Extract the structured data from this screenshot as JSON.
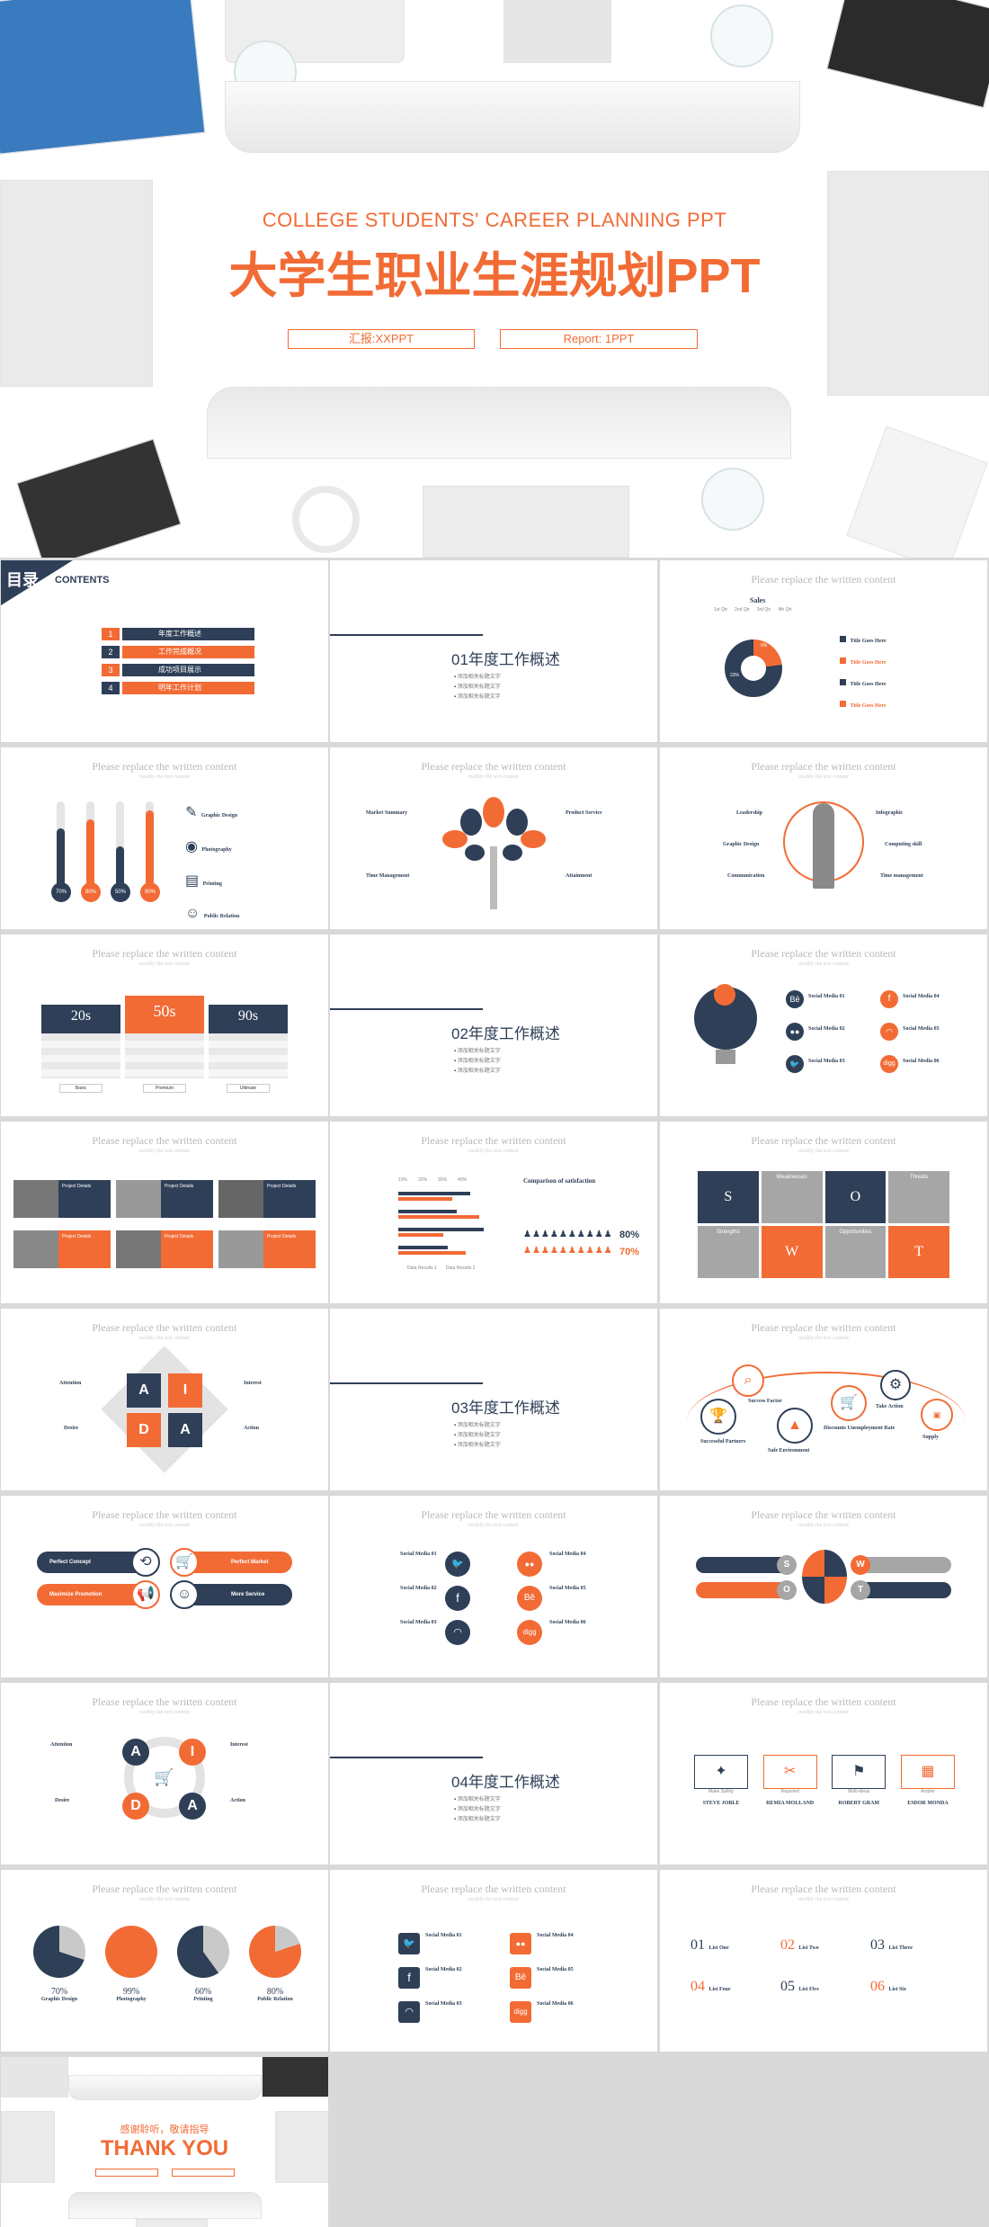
{
  "cover": {
    "title_en": "COLLEGE STUDENTS' CAREER PLANNING PPT",
    "title_cn": "大学生职业生涯规划PPT",
    "reporter": "汇报:XXPPT",
    "report": "Report: 1PPT"
  },
  "contents": {
    "label_cn": "目录",
    "label_en": "CONTENTS",
    "items": [
      {
        "num": "1",
        "text": "年度工作概述"
      },
      {
        "num": "2",
        "text": "工作完成概况"
      },
      {
        "num": "3",
        "text": "成功项目展示"
      },
      {
        "num": "4",
        "text": "明年工作计划"
      }
    ]
  },
  "common": {
    "slide_title": "Please replace the written content",
    "slide_sub": "modify the text content",
    "bullet": "添加相关标题文字"
  },
  "sections": [
    {
      "title": "01年度工作概述"
    },
    {
      "title": "02年度工作概述"
    },
    {
      "title": "03年度工作概述"
    },
    {
      "title": "04年度工作概述"
    }
  ],
  "sales": {
    "title": "Sales",
    "legend": [
      "1st Qtr",
      "2nd Qtr",
      "3rd Qtr",
      "4th Qtr"
    ],
    "labels": [
      "9%",
      "23%"
    ],
    "items": [
      "Title Goes Here",
      "Title Goes Here",
      "Title Goes Here",
      "Title Goes Here"
    ]
  },
  "thermo": {
    "values": [
      "70%",
      "80%",
      "50%",
      "90%"
    ],
    "items": [
      "Graphic Design",
      "Photography",
      "Printing",
      "Public Relation"
    ]
  },
  "tree": {
    "items": [
      "Market Summary",
      "Product Service",
      "Time Management",
      "Attainment"
    ]
  },
  "person": {
    "items": [
      "Leadership",
      "Infographic",
      "Graphic Design",
      "Computing skill",
      "Communication",
      "Time management"
    ]
  },
  "pricing": {
    "plans": [
      "20s",
      "50s",
      "90s"
    ],
    "per": "per month",
    "buttons": [
      "Basic",
      "Premium",
      "Ultimate"
    ]
  },
  "social": {
    "items": [
      "Social Media 01",
      "Social Media 02",
      "Social Media 03",
      "Social Media 04",
      "Social Media 05",
      "Social Media 06"
    ]
  },
  "team": {
    "label": "Project Details"
  },
  "satisfaction": {
    "title": "Comparison of satisfaction",
    "values": [
      "80%",
      "70%"
    ],
    "axis": [
      "10%",
      "20%",
      "30%",
      "40%"
    ],
    "legend": [
      "Data Results 1",
      "Data Results 2"
    ]
  },
  "swot": {
    "letters": [
      "S",
      "W",
      "O",
      "T"
    ],
    "labels": [
      "Strengths",
      "Weaknesses",
      "Opportunities",
      "Threats"
    ]
  },
  "aida": {
    "letters": [
      "A",
      "I",
      "D",
      "A"
    ],
    "labels": [
      "Attention",
      "Interest",
      "Desire",
      "Action"
    ]
  },
  "steps": {
    "items": [
      "Success Factor",
      "Successful Partners",
      "Safe Environment",
      "Discounts Unemployment Rate",
      "Take Action",
      "Supply"
    ]
  },
  "hex": {
    "items": [
      "Perfect Concept",
      "Perfect Market",
      "Maximize Promotion",
      "More Service"
    ]
  },
  "team2": {
    "names": [
      "STEVE JOBLE",
      "REMIA MOLLAND",
      "ROBERT GRAM",
      "ESDOR MONDA"
    ],
    "roles": [
      "Make Safety",
      "Repaired",
      "Multi-ideas",
      "Ampler"
    ]
  },
  "pies": {
    "values": [
      "70%",
      "99%",
      "60%",
      "80%"
    ],
    "labels": [
      "Graphic Design",
      "Photography",
      "Printing",
      "Public Relation"
    ]
  },
  "list": {
    "nums": [
      "01",
      "02",
      "03",
      "04",
      "05",
      "06"
    ],
    "titles": [
      "List One",
      "List Two",
      "List Three",
      "List Four",
      "List Five",
      "List Six"
    ]
  },
  "thanks": {
    "cn": "感谢聆听，敬请指导",
    "en": "THANK YOU"
  },
  "colors": {
    "navy": "#2e3f57",
    "orange": "#f26b35",
    "gray": "#a6a6a6"
  }
}
